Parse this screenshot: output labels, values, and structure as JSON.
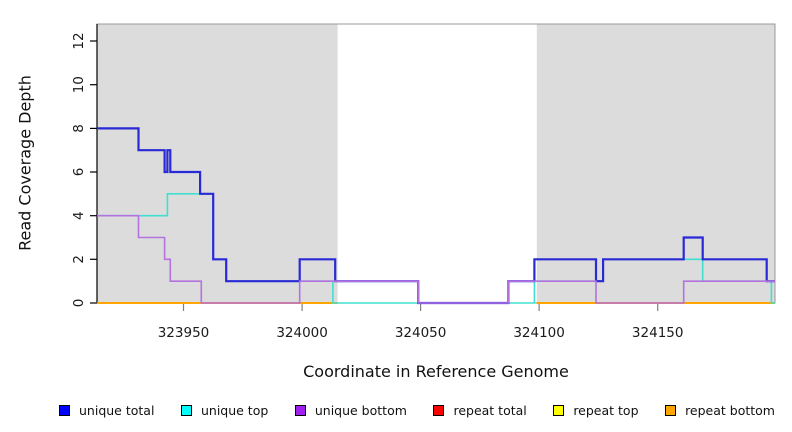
{
  "chart_data": {
    "type": "line",
    "subtype": "step",
    "title": "",
    "xlabel": "Coordinate in Reference Genome",
    "ylabel": "Read Coverage Depth",
    "xlim": [
      323913.5,
      324199.5
    ],
    "ylim": [
      0,
      12.78
    ],
    "xticks": [
      323950,
      324000,
      324050,
      324100,
      324150
    ],
    "yticks": [
      0,
      2,
      4,
      6,
      8,
      10,
      12
    ],
    "grid": "off",
    "legend_position": "bottom",
    "background_shading": {
      "color": "#dcdcdc",
      "regions": [
        [
          323913.5,
          324015
        ],
        [
          324099,
          324199.5
        ]
      ]
    },
    "legend": [
      {
        "label": "unique total",
        "swatch_color": "#0000ff"
      },
      {
        "label": "unique top",
        "swatch_color": "#00ffff"
      },
      {
        "label": "unique bottom",
        "swatch_color": "#a020f0"
      },
      {
        "label": "repeat total",
        "swatch_color": "#ff0000"
      },
      {
        "label": "repeat top",
        "swatch_color": "#ffff00"
      },
      {
        "label": "repeat bottom",
        "swatch_color": "#ffa500"
      }
    ],
    "series": [
      {
        "name": "repeat total",
        "line_color": "#ff0000",
        "line_width": 1.6,
        "segments": [
          [
            [
              323913.5,
              0
            ],
            [
              324015,
              0
            ]
          ],
          [
            [
              324099,
              0
            ],
            [
              324199.5,
              0
            ]
          ]
        ]
      },
      {
        "name": "repeat top",
        "line_color": "#ffff00",
        "line_width": 1.6,
        "segments": [
          [
            [
              323913.5,
              0
            ],
            [
              324015,
              0
            ]
          ],
          [
            [
              324099,
              0
            ],
            [
              324199.5,
              0
            ]
          ]
        ]
      },
      {
        "name": "repeat bottom",
        "line_color": "#ffa500",
        "line_width": 2,
        "segments": [
          [
            [
              323913.5,
              0
            ],
            [
              324015,
              0
            ]
          ],
          [
            [
              324099,
              0
            ],
            [
              324199.5,
              0
            ]
          ]
        ]
      },
      {
        "name": "unique top",
        "line_color": "#40e0d0",
        "line_width": 1.6,
        "segments": [
          [
            [
              323913.5,
              4
            ],
            [
              323943.2,
              5
            ],
            [
              323962.5,
              2
            ],
            [
              323968,
              1
            ],
            [
              324013,
              0
            ],
            [
              324098,
              1
            ],
            [
              324127,
              2
            ],
            [
              324169,
              1
            ],
            [
              324198,
              0
            ],
            [
              324199.5,
              0
            ]
          ]
        ]
      },
      {
        "name": "unique total",
        "line_color": "#2929d6",
        "line_width": 2.2,
        "segments": [
          [
            [
              323913.5,
              8
            ],
            [
              323931,
              7
            ],
            [
              323942,
              6
            ],
            [
              323943.2,
              7
            ],
            [
              323944.4,
              6
            ],
            [
              323957,
              5
            ],
            [
              323962.5,
              2
            ],
            [
              323968,
              1
            ],
            [
              323999,
              2
            ],
            [
              324014,
              1
            ],
            [
              324049,
              0
            ],
            [
              324087,
              1
            ],
            [
              324098,
              2
            ],
            [
              324124,
              1
            ],
            [
              324127,
              2
            ],
            [
              324161,
              3
            ],
            [
              324169,
              2
            ],
            [
              324196,
              1
            ],
            [
              324199.5,
              1
            ]
          ]
        ]
      },
      {
        "name": "unique bottom",
        "line_color": "#b472e0",
        "line_width": 1.6,
        "segments": [
          [
            [
              323913.5,
              4
            ],
            [
              323931,
              3
            ],
            [
              323942,
              2
            ],
            [
              323944.4,
              1
            ],
            [
              323957.5,
              0
            ],
            [
              323999,
              1
            ],
            [
              324049,
              0
            ],
            [
              324087,
              1
            ],
            [
              324124,
              0
            ],
            [
              324161,
              1
            ],
            [
              324199.5,
              1
            ]
          ]
        ]
      }
    ]
  }
}
